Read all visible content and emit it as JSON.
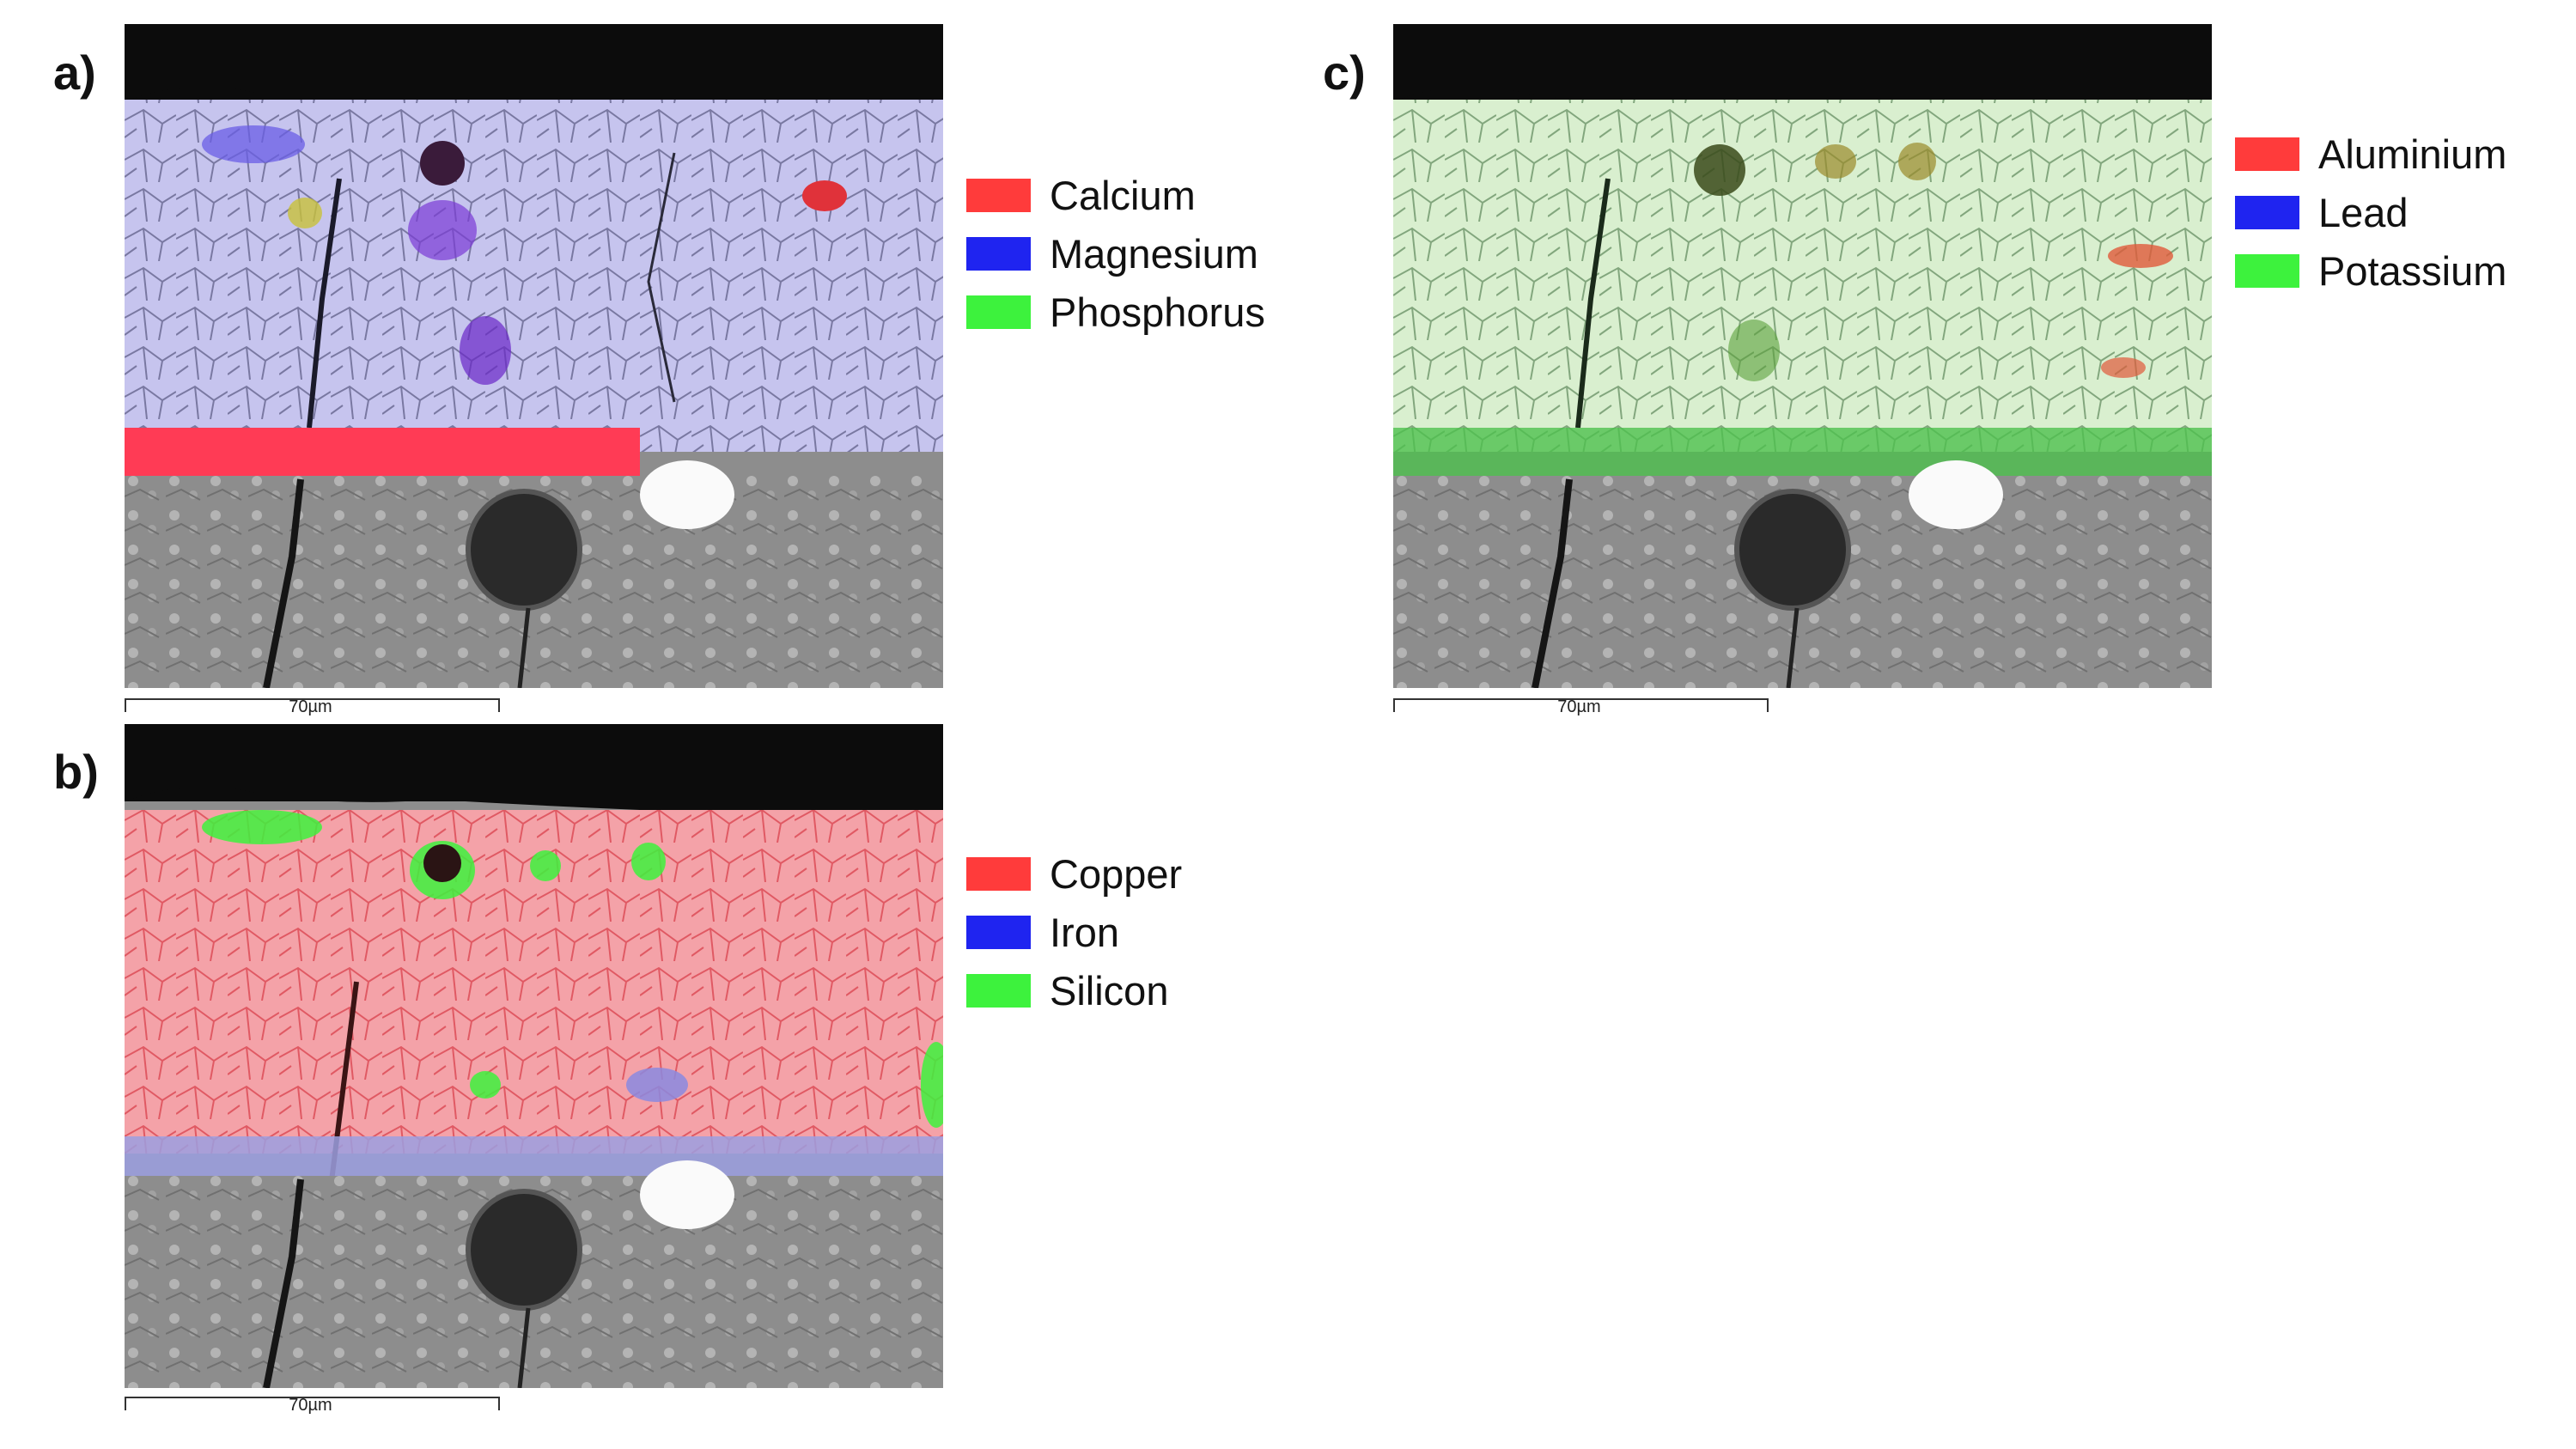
{
  "panels": {
    "a": {
      "label": "a)",
      "scale_label": "70µm",
      "legend": [
        {
          "name": "Calcium",
          "color": "#ff3b3b"
        },
        {
          "name": "Magnesium",
          "color": "#1f24f0"
        },
        {
          "name": "Phosphorus",
          "color": "#3df23d"
        }
      ],
      "overlay_colors": [
        "#c6c4ee",
        "#ff3b55"
      ]
    },
    "b": {
      "label": "b)",
      "scale_label": "70µm",
      "legend": [
        {
          "name": "Copper",
          "color": "#ff3b3b"
        },
        {
          "name": "Iron",
          "color": "#1f24f0"
        },
        {
          "name": "Silicon",
          "color": "#3df23d"
        }
      ],
      "overlay_colors": [
        "#f4a2a8",
        "#9b9fe0"
      ]
    },
    "c": {
      "label": "c)",
      "scale_label": "70µm",
      "legend": [
        {
          "name": "Aluminium",
          "color": "#ff3b3b"
        },
        {
          "name": "Lead",
          "color": "#1f24f0"
        },
        {
          "name": "Potassium",
          "color": "#3df23d"
        }
      ],
      "overlay_colors": [
        "#d9efcf",
        "#4ec04e"
      ]
    }
  }
}
